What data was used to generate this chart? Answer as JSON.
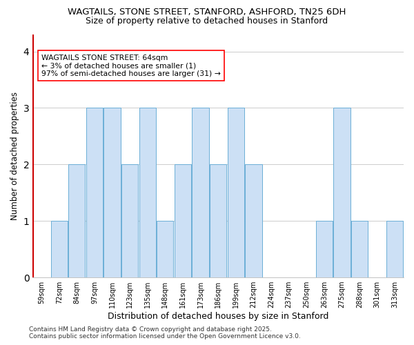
{
  "title1": "WAGTAILS, STONE STREET, STANFORD, ASHFORD, TN25 6DH",
  "title2": "Size of property relative to detached houses in Stanford",
  "xlabel": "Distribution of detached houses by size in Stanford",
  "ylabel": "Number of detached properties",
  "categories": [
    "59sqm",
    "72sqm",
    "84sqm",
    "97sqm",
    "110sqm",
    "123sqm",
    "135sqm",
    "148sqm",
    "161sqm",
    "173sqm",
    "186sqm",
    "199sqm",
    "212sqm",
    "224sqm",
    "237sqm",
    "250sqm",
    "263sqm",
    "275sqm",
    "288sqm",
    "301sqm",
    "313sqm"
  ],
  "values": [
    0,
    1,
    2,
    3,
    3,
    2,
    3,
    1,
    2,
    3,
    2,
    3,
    2,
    0,
    0,
    0,
    1,
    3,
    1,
    0,
    1
  ],
  "bar_color": "#cce0f5",
  "bar_edge_color": "#6baed6",
  "highlight_color": "#cc0000",
  "annotation_text": "WAGTAILS STONE STREET: 64sqm\n← 3% of detached houses are smaller (1)\n97% of semi-detached houses are larger (31) →",
  "ylim": [
    0,
    4.3
  ],
  "yticks": [
    0,
    1,
    2,
    3,
    4
  ],
  "footer": "Contains HM Land Registry data © Crown copyright and database right 2025.\nContains public sector information licensed under the Open Government Licence v3.0.",
  "bg_color": "#ffffff",
  "plot_bg_color": "#ffffff",
  "grid_color": "#cccccc"
}
